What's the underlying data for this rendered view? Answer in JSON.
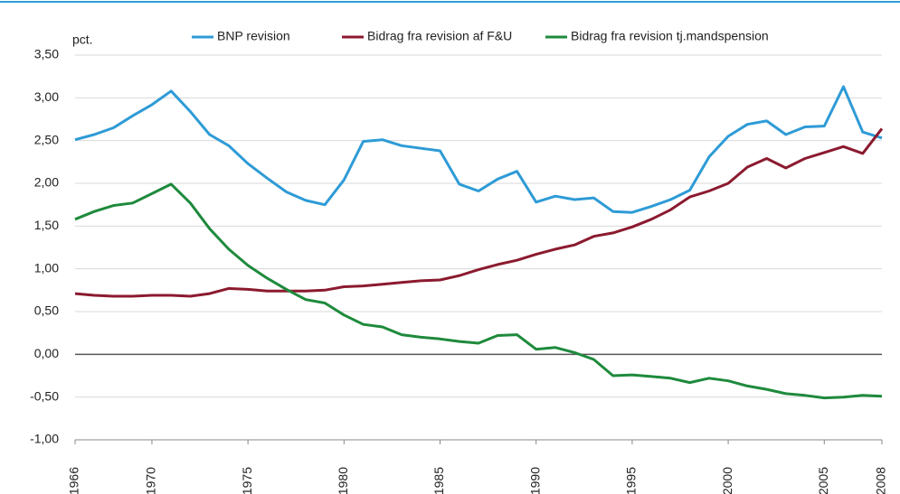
{
  "chart_data": {
    "type": "line",
    "y_label": "pct.",
    "x": [
      1966,
      1967,
      1968,
      1969,
      1970,
      1971,
      1972,
      1973,
      1974,
      1975,
      1976,
      1977,
      1978,
      1979,
      1980,
      1981,
      1982,
      1983,
      1984,
      1985,
      1986,
      1987,
      1988,
      1989,
      1990,
      1991,
      1992,
      1993,
      1994,
      1995,
      1996,
      1997,
      1998,
      1999,
      2000,
      2001,
      2002,
      2003,
      2004,
      2005,
      2006,
      2007,
      2008
    ],
    "series": [
      {
        "name": "BNP revision",
        "color": "#2e9bd6",
        "values": [
          2.51,
          2.57,
          2.65,
          2.79,
          2.92,
          3.08,
          2.84,
          2.57,
          2.44,
          2.23,
          2.06,
          1.9,
          1.8,
          1.75,
          2.04,
          2.49,
          2.51,
          2.44,
          2.41,
          2.38,
          1.99,
          1.91,
          2.05,
          2.14,
          1.78,
          1.85,
          1.81,
          1.83,
          1.67,
          1.66,
          1.73,
          1.81,
          1.92,
          2.31,
          2.55,
          2.69,
          2.73,
          2.57,
          2.66,
          2.67,
          3.13,
          2.6,
          2.53
        ]
      },
      {
        "name": "Bidrag fra revision af F&U",
        "color": "#8b1a2f",
        "values": [
          0.71,
          0.69,
          0.68,
          0.68,
          0.69,
          0.69,
          0.68,
          0.71,
          0.77,
          0.76,
          0.74,
          0.74,
          0.74,
          0.75,
          0.79,
          0.8,
          0.82,
          0.84,
          0.86,
          0.87,
          0.92,
          0.99,
          1.05,
          1.1,
          1.17,
          1.23,
          1.28,
          1.38,
          1.42,
          1.49,
          1.58,
          1.69,
          1.84,
          1.91,
          2.0,
          2.19,
          2.29,
          2.18,
          2.29,
          2.36,
          2.43,
          2.35,
          2.64
        ]
      },
      {
        "name": "Bidrag fra revision tj.mandspension",
        "color": "#1e8a3c",
        "values": [
          1.58,
          1.67,
          1.74,
          1.77,
          1.88,
          1.99,
          1.77,
          1.47,
          1.23,
          1.04,
          0.89,
          0.76,
          0.64,
          0.6,
          0.46,
          0.35,
          0.32,
          0.23,
          0.2,
          0.18,
          0.15,
          0.13,
          0.22,
          0.23,
          0.06,
          0.08,
          0.02,
          -0.06,
          -0.25,
          -0.24,
          -0.26,
          -0.28,
          -0.33,
          -0.28,
          -0.31,
          -0.37,
          -0.41,
          -0.46,
          -0.48,
          -0.51,
          -0.5,
          -0.48,
          -0.49
        ]
      }
    ],
    "xlim": [
      1966,
      2008
    ],
    "xticks": [
      1966,
      1970,
      1975,
      1980,
      1985,
      1990,
      1995,
      2000,
      2005,
      2008
    ],
    "ylim": [
      -1.0,
      3.5
    ],
    "yticks": [
      {
        "value": -1.0,
        "label": "-1,00"
      },
      {
        "value": -0.5,
        "label": "-0,50"
      },
      {
        "value": 0,
        "label": "0,00"
      },
      {
        "value": 0.5,
        "label": "0,50"
      },
      {
        "value": 1.0,
        "label": "1,00"
      },
      {
        "value": 1.5,
        "label": "1,50"
      },
      {
        "value": 2.0,
        "label": "2,00"
      },
      {
        "value": 2.5,
        "label": "2,50"
      },
      {
        "value": 3.0,
        "label": "3,00"
      },
      {
        "value": 3.5,
        "label": "3,50"
      }
    ],
    "grid": true
  }
}
